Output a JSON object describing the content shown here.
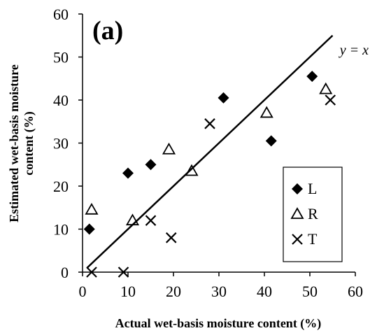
{
  "chart_data": {
    "type": "scatter",
    "title": "",
    "panel_label": "(a)",
    "xlabel": "Actual wet-basis moisture content (%)",
    "ylabel_lines": [
      "Estimated wet-basis moisture",
      "content (%)"
    ],
    "xlim": [
      0,
      60
    ],
    "ylim": [
      0,
      60
    ],
    "xticks": [
      "0",
      "10",
      "20",
      "30",
      "40",
      "50",
      "60"
    ],
    "yticks": [
      "0",
      "10",
      "20",
      "30",
      "40",
      "50",
      "60"
    ],
    "grid": false,
    "legend_position": "bottom-right",
    "identity_line": {
      "label": "y = x",
      "x": [
        1,
        55
      ],
      "y": [
        1,
        55
      ]
    },
    "series": [
      {
        "name": "L",
        "marker": "diamond",
        "x": [
          1.5,
          10,
          15,
          31,
          41.5,
          50.5
        ],
        "y": [
          10,
          23,
          25,
          40.5,
          30.5,
          45.5
        ]
      },
      {
        "name": "R",
        "marker": "triangle",
        "x": [
          2,
          11,
          19,
          24,
          40.5,
          53.5
        ],
        "y": [
          14.5,
          12,
          28.5,
          23.5,
          37,
          42.5
        ]
      },
      {
        "name": "T",
        "marker": "cross",
        "x": [
          2,
          9,
          15,
          19.5,
          28,
          54.5
        ],
        "y": [
          0,
          0,
          12,
          8,
          34.5,
          40
        ]
      }
    ]
  }
}
